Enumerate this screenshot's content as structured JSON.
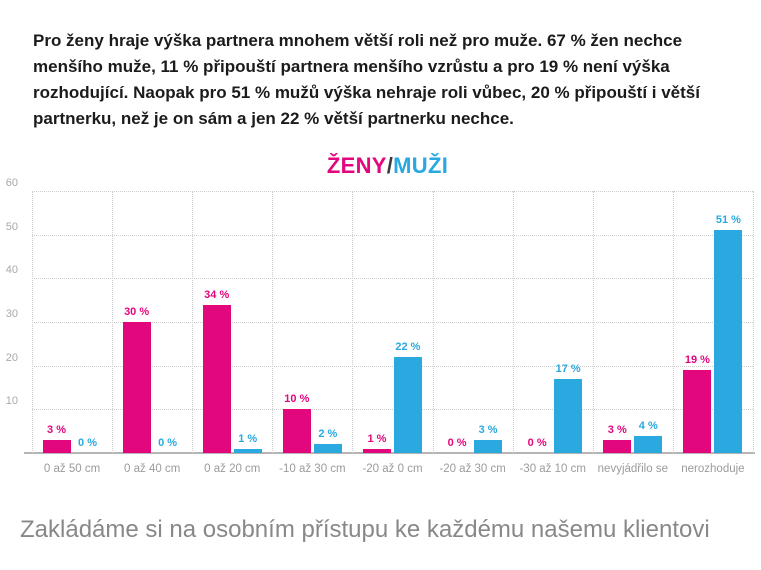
{
  "intro": {
    "text": "Pro ženy hraje výška partnera mnohem větší roli než pro muže. 67 % žen nechce\nmenšího muže, 11 % připouští partnera menšího vzrůstu a pro 19 % není výška\nrozhodující. Naopak pro 51 % mužů výška nehraje roli vůbec, 20 %  připouští i větší\npartnerku, než je on sám a jen 22 % větší partnerku nechce."
  },
  "chart": {
    "title_left": "ŽENY",
    "title_separator": "/",
    "title_right": "MUŽI"
  },
  "chart_data": {
    "type": "bar",
    "title": "ŽENY/MUŽI",
    "categories": [
      "0 až 50 cm",
      "0 až 40 cm",
      "0 až 20 cm",
      "-10 až 30 cm",
      "-20 až 0 cm",
      "-20 až 30 cm",
      "-30 až 10 cm",
      "nevyjádřilo se",
      "nerozhoduje"
    ],
    "series": [
      {
        "name": "ŽENY",
        "color": "#e2077d",
        "values": [
          3,
          30,
          34,
          10,
          1,
          0,
          0,
          3,
          19
        ]
      },
      {
        "name": "MUŽI",
        "color": "#29a9e0",
        "values": [
          0,
          0,
          1,
          2,
          22,
          3,
          17,
          4,
          51
        ]
      }
    ],
    "value_suffix": " %",
    "xlabel": "",
    "ylabel": "",
    "ylim": [
      0,
      60
    ],
    "yticks": [
      10,
      20,
      30,
      40,
      50,
      60
    ],
    "grid": "dotted-horizontal-and-vertical",
    "legend_position": "in-title",
    "axis_color": "#b5b5b5",
    "grid_color": "#cfcfcf",
    "tick_label_color": "#a8a8a8",
    "category_label_color": "#9b9b9b"
  },
  "footer": {
    "text": "Zakládáme si na osobním přístupu ke každému našemu klientovi"
  }
}
